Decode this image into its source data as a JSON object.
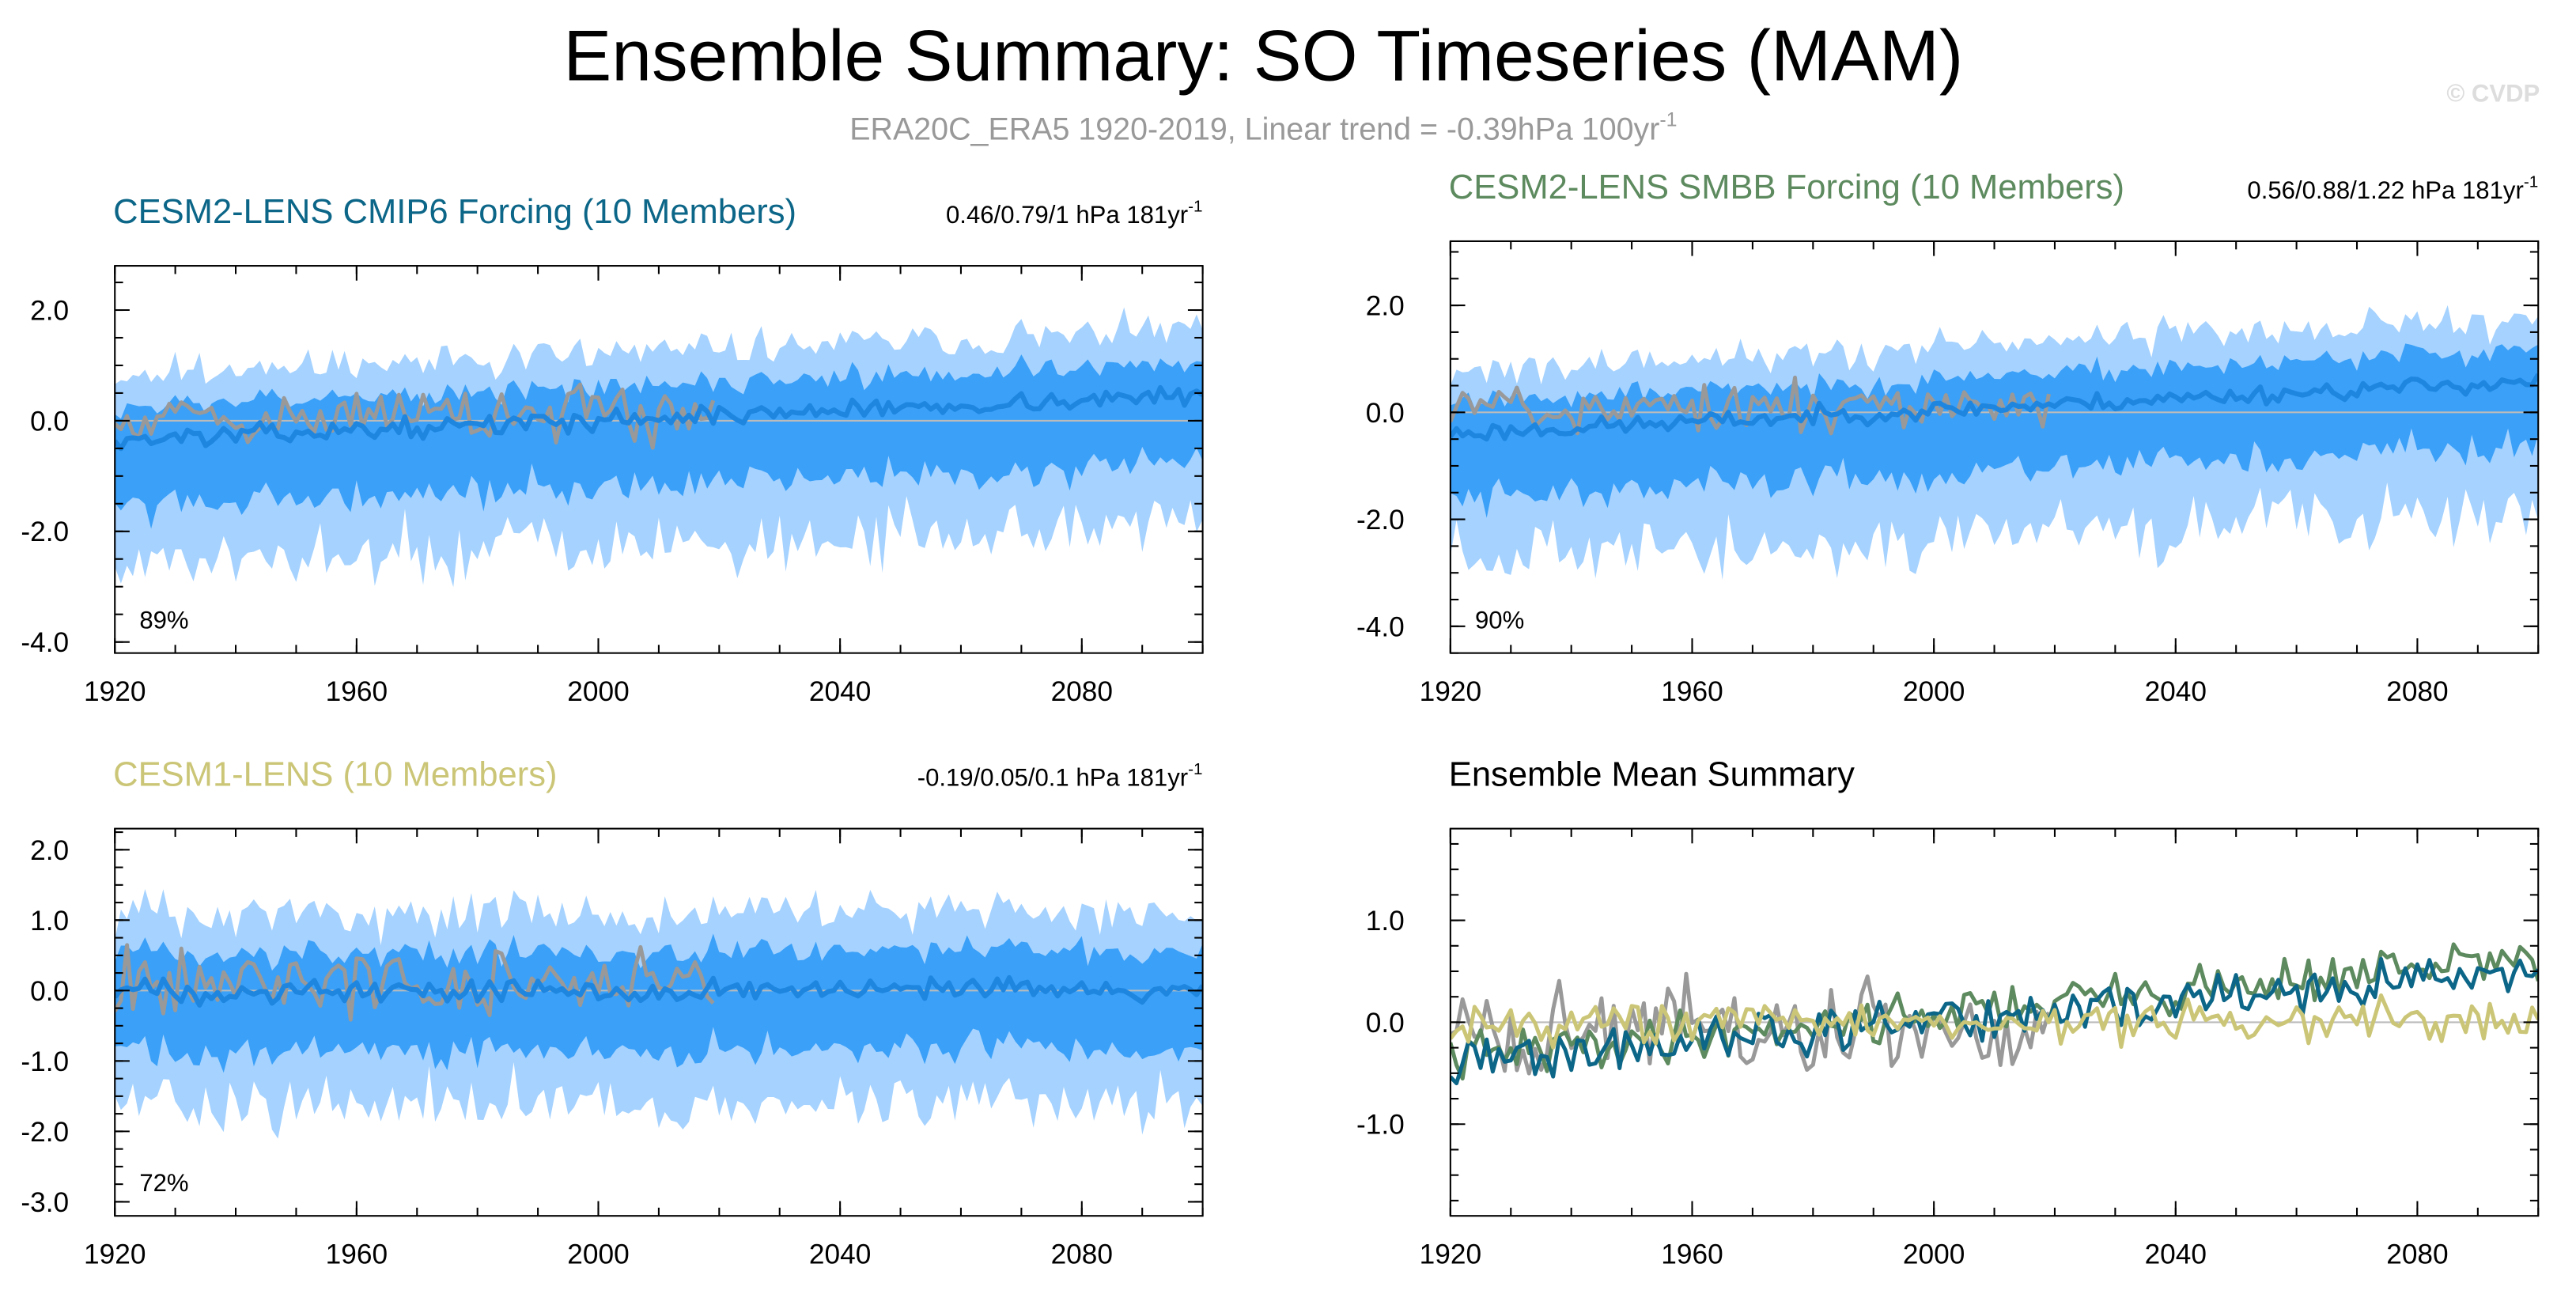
{
  "figure": {
    "title": "Ensemble Summary: SO Timeseries (MAM)",
    "subtitle_main": "ERA20C_ERA5 1920-2019, Linear trend = -0.39hPa 100yr",
    "subtitle_sup": "-1",
    "watermark": "© CVDP"
  },
  "colors": {
    "band_outer": "#a5d2ff",
    "band_inner": "#3aa0f8",
    "ens_mean": "#1f86e0",
    "obs": "#999999",
    "cmip6": "#0c6688",
    "smbb": "#5d8a5e",
    "cesm1": "#cbc677",
    "zero_line": "#bbbbbb"
  },
  "chart_data": [
    {
      "type": "area",
      "title": "CESM2-LENS CMIP6 Forcing (10 Members)",
      "title_color": "#0c6688",
      "stats": "0.46/0.79/1 hPa 181yr",
      "stats_sup": "-1",
      "percent_label": "89%",
      "xlim": [
        1920,
        2100
      ],
      "ylim": [
        -4.2,
        2.8
      ],
      "x_ticks": [
        1920,
        1960,
        2000,
        2040,
        2080
      ],
      "x_tick_labels": [
        "1920",
        "1960",
        "2000",
        "2040",
        "2080"
      ],
      "y_ticks": [
        2.0,
        0.0,
        -2.0,
        -4.0
      ],
      "y_tick_labels": [
        "2.0",
        "0.0",
        "-2.0",
        "-4.0"
      ],
      "series": [
        {
          "name": "ensemble 10-90% range",
          "style": "band_outer",
          "amp_hi": 1.2,
          "amp_lo": 2.3,
          "seed": 11
        },
        {
          "name": "ensemble 25-75% range",
          "style": "band_inner",
          "amp_hi": 0.6,
          "amp_lo": 1.2,
          "seed": 12
        },
        {
          "name": "ensemble mean",
          "style": "ens_mean",
          "x_start": 1920,
          "x_end": 2100,
          "base": -0.35,
          "trend": 0.0045,
          "amp": 0.25,
          "seed": 13
        },
        {
          "name": "ERA20C_ERA5",
          "style": "obs",
          "x_start": 1920,
          "x_end": 2019,
          "base": 0.1,
          "trend": 0.0,
          "amp": 0.75,
          "seed": 14
        }
      ]
    },
    {
      "type": "area",
      "title": "CESM2-LENS SMBB Forcing (10 Members)",
      "title_color": "#5d8a5e",
      "stats": "0.56/0.88/1.22 hPa 181yr",
      "stats_sup": "-1",
      "percent_label": "90%",
      "xlim": [
        1920,
        2100
      ],
      "ylim": [
        -4.5,
        3.2
      ],
      "x_ticks": [
        1920,
        1960,
        2000,
        2040,
        2080
      ],
      "x_tick_labels": [
        "1920",
        "1960",
        "2000",
        "2040",
        "2080"
      ],
      "y_ticks": [
        2.0,
        0.0,
        -2.0,
        -4.0
      ],
      "y_tick_labels": [
        "2.0",
        "0.0",
        "-2.0",
        "-4.0"
      ],
      "series": [
        {
          "name": "ensemble 10-90% range",
          "style": "band_outer",
          "amp_hi": 1.2,
          "amp_lo": 2.4,
          "seed": 21
        },
        {
          "name": "ensemble 25-75% range",
          "style": "band_inner",
          "amp_hi": 0.6,
          "amp_lo": 1.2,
          "seed": 22
        },
        {
          "name": "ensemble mean",
          "style": "ens_mean",
          "x_start": 1920,
          "x_end": 2100,
          "base": -0.4,
          "trend": 0.0055,
          "amp": 0.25,
          "seed": 23
        },
        {
          "name": "ERA20C_ERA5",
          "style": "obs",
          "x_start": 1920,
          "x_end": 2019,
          "base": 0.1,
          "trend": 0.0,
          "amp": 0.75,
          "seed": 24
        }
      ]
    },
    {
      "type": "area",
      "title": "CESM1-LENS (10 Members)",
      "title_color": "#cbc677",
      "stats": "-0.19/0.05/0.1 hPa 181yr",
      "stats_sup": "-1",
      "percent_label": "72%",
      "xlim": [
        1920,
        2100
      ],
      "ylim": [
        -3.2,
        2.3
      ],
      "x_ticks": [
        1920,
        1960,
        2000,
        2040,
        2080
      ],
      "x_tick_labels": [
        "1920",
        "1960",
        "2000",
        "2040",
        "2080"
      ],
      "y_ticks": [
        2.0,
        1.0,
        0.0,
        -1.0,
        -2.0,
        -3.0
      ],
      "y_tick_labels": [
        "2.0",
        "1.0",
        "0.0",
        "-1.0",
        "-2.0",
        "-3.0"
      ],
      "series": [
        {
          "name": "ensemble 10-90% range",
          "style": "band_outer",
          "amp_hi": 1.1,
          "amp_lo": 1.6,
          "seed": 31
        },
        {
          "name": "ensemble 25-75% range",
          "style": "band_inner",
          "amp_hi": 0.55,
          "amp_lo": 0.85,
          "seed": 32
        },
        {
          "name": "ensemble mean",
          "style": "ens_mean",
          "x_start": 1920,
          "x_end": 2100,
          "base": 0.0,
          "trend": 0.0,
          "amp": 0.25,
          "seed": 33
        },
        {
          "name": "ERA20C_ERA5",
          "style": "obs",
          "x_start": 1920,
          "x_end": 2019,
          "base": 0.1,
          "trend": 0.0,
          "amp": 0.75,
          "seed": 34
        }
      ]
    },
    {
      "type": "line",
      "title": "Ensemble Mean Summary",
      "title_color": "#000000",
      "stats": "",
      "stats_sup": "",
      "percent_label": "",
      "xlim": [
        1920,
        2100
      ],
      "ylim": [
        -1.9,
        1.9
      ],
      "x_ticks": [
        1920,
        1960,
        2000,
        2040,
        2080
      ],
      "x_tick_labels": [
        "1920",
        "1960",
        "2000",
        "2040",
        "2080"
      ],
      "y_ticks": [
        1.0,
        0.0,
        -1.0
      ],
      "y_tick_labels": [
        "1.0",
        "0.0",
        "-1.0"
      ],
      "series": [
        {
          "name": "CESM2-LENS SMBB Forcing mean",
          "style": "smbb",
          "x_start": 1920,
          "x_end": 2100,
          "base": -0.35,
          "trend": 0.0055,
          "amp": 0.35,
          "seed": 41
        },
        {
          "name": "CESM2-LENS CMIP6 Forcing mean",
          "style": "cmip6",
          "x_start": 1920,
          "x_end": 2100,
          "base": -0.4,
          "trend": 0.005,
          "amp": 0.35,
          "seed": 42
        },
        {
          "name": "CESM1-LENS mean",
          "style": "cesm1",
          "x_start": 1920,
          "x_end": 2100,
          "base": 0.0,
          "trend": 0.0,
          "amp": 0.3,
          "seed": 43
        },
        {
          "name": "ERA20C_ERA5",
          "style": "obs",
          "x_start": 1920,
          "x_end": 2019,
          "base": -0.1,
          "trend": 0.0,
          "amp": 0.75,
          "seed": 44
        }
      ]
    }
  ]
}
